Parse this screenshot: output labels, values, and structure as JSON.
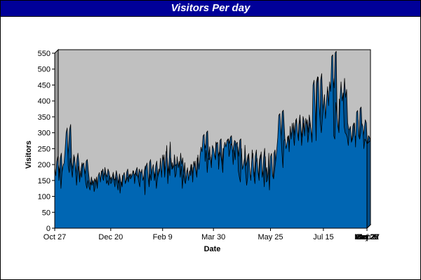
{
  "chart_data": {
    "type": "area",
    "title": "Visitors Per day",
    "xlabel": "Date",
    "ylabel": "Visitors",
    "ylim": [
      0,
      550
    ],
    "y_ticks": [
      0,
      50,
      100,
      150,
      200,
      250,
      300,
      350,
      400,
      450,
      500,
      550
    ],
    "x_tick_labels": [
      "Oct 27",
      "Dec 20",
      "Feb 9",
      "Mar 30",
      "May 25",
      "Jul 15",
      "Sep 1",
      "Oct 20",
      "Dec 9",
      "Jan 28",
      "Mar 22",
      "May 17",
      "Jul 2"
    ],
    "x_tick_positions": [
      0,
      54,
      104,
      153,
      208,
      259,
      307,
      356,
      406,
      456,
      510,
      566,
      612
    ],
    "series": [
      {
        "values": [
          190,
          165,
          210,
          225,
          150,
          190,
          125,
          175,
          195,
          205,
          245,
          300,
          315,
          195,
          175,
          220,
          185,
          160,
          205,
          225,
          190,
          135,
          175,
          195,
          145,
          180,
          160,
          200,
          205,
          170,
          140,
          125,
          150,
          130,
          120,
          145,
          135,
          150,
          115,
          130,
          155,
          125,
          165,
          175,
          145,
          180,
          160,
          150,
          175,
          165,
          140,
          150,
          135,
          165,
          140,
          145,
          170,
          150,
          130,
          160,
          140,
          120,
          155,
          110,
          145,
          130,
          165,
          175,
          140,
          150,
          160,
          145,
          170,
          155,
          160,
          170,
          180,
          140,
          175,
          165,
          165,
          145,
          130,
          170,
          185,
          150,
          165,
          105,
          195,
          205,
          160,
          130,
          170,
          150,
          185,
          200,
          150,
          175,
          125,
          155,
          170,
          180,
          220,
          160,
          230,
          210,
          160,
          205,
          260,
          140,
          195,
          165,
          220,
          185,
          190,
          200,
          160,
          170,
          225,
          190,
          210,
          160,
          195,
          125,
          170,
          150,
          140,
          165,
          190,
          150,
          180,
          165,
          200,
          145,
          210,
          195,
          180,
          160,
          230,
          185,
          225,
          255,
          240,
          290,
          295,
          210,
          245,
          175,
          220,
          215,
          225,
          190,
          260,
          250,
          230,
          215,
          265,
          270,
          185,
          240,
          230,
          210,
          175,
          250,
          270,
          255,
          275,
          280,
          225,
          245,
          265,
          260,
          200,
          245,
          215,
          265,
          270,
          180,
          160,
          145,
          250,
          185,
          200,
          220,
          175,
          135,
          160,
          235,
          185,
          150,
          215,
          235,
          165,
          140,
          205,
          220,
          175,
          150,
          210,
          240,
          160,
          180,
          130,
          225,
          145,
          150,
          185,
          120,
          225,
          235,
          165,
          155,
          185,
          210,
          245,
          285,
          355,
          360,
          300,
          240,
          190,
          275,
          280,
          250,
          270,
          290,
          240,
          320,
          280,
          330,
          290,
          260,
          315,
          345,
          300,
          275,
          340,
          325,
          260,
          300,
          330,
          290,
          345,
          320,
          270,
          300,
          330,
          310,
          270,
          450,
          465,
          380,
          275,
          455,
          475,
          380,
          330,
          300,
          345,
          380,
          420,
          345,
          400,
          445,
          385,
          460,
          430,
          540,
          545,
          290,
          280,
          395,
          360,
          320,
          300,
          400,
          460,
          400,
          425,
          320,
          300,
          295,
          285,
          260,
          310,
          320,
          270,
          280,
          295,
          330,
          255,
          365,
          370,
          290,
          280,
          300,
          330,
          320,
          250,
          280,
          275,
          265
        ]
      }
    ],
    "colors": {
      "area_fill": "#0066b3",
      "area_outline": "#000000",
      "plot_background": "#c0c0c0",
      "title_bar": "#000099"
    }
  }
}
